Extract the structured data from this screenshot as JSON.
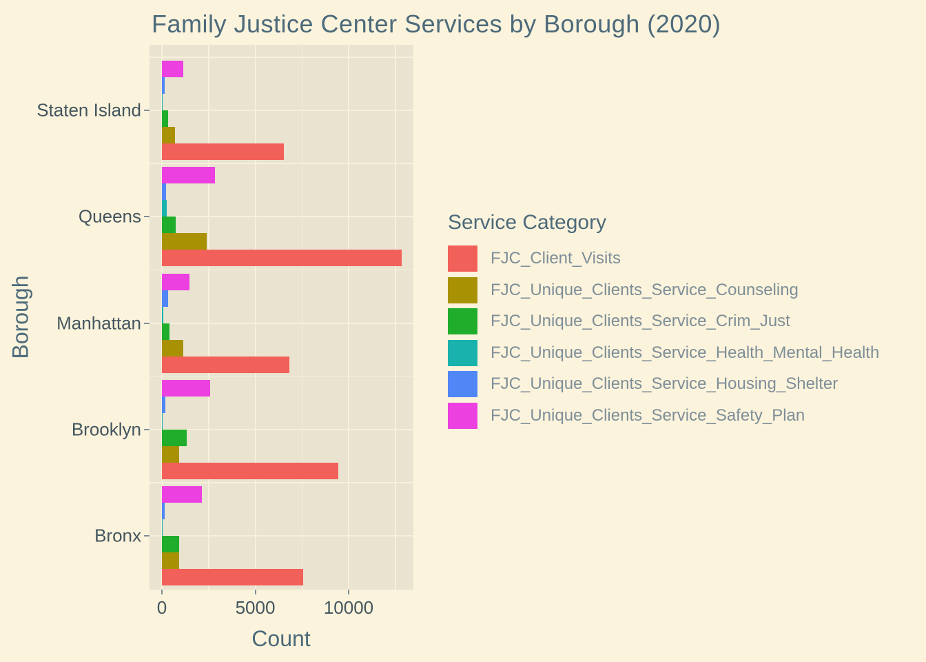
{
  "title": "Family Justice Center Services by Borough (2020)",
  "x_axis": {
    "label": "Count",
    "tick_labels": [
      "0",
      "5000",
      "10000"
    ]
  },
  "y_axis": {
    "label": "Borough",
    "tick_labels": [
      "Staten Island",
      "Queens",
      "Manhattan",
      "Brooklyn",
      "Bronx"
    ]
  },
  "legend": {
    "title": "Service Category"
  },
  "colors": {
    "figure_background": "#FBF3DC",
    "panel_background": "#E9E3D0",
    "gridline": "#F7F0DB",
    "title_text": "#4C6A7A",
    "axis_text": "#44565F",
    "legend_label_text": "#7E8E98",
    "tick_mark": "#7E8E96"
  },
  "chart_data": {
    "type": "bar",
    "orientation": "horizontal",
    "title": "Family Justice Center Services by Borough (2020)",
    "xlabel": "Count",
    "ylabel": "Borough",
    "xlim": [
      0,
      13470
    ],
    "x_ticks": [
      0,
      5000,
      10000
    ],
    "x_minor_gridlines": [
      2500,
      7500,
      12500
    ],
    "grid": "on",
    "legend_position": "right",
    "legend_title": "Service Category",
    "categories_bottom_to_top": [
      "Bronx",
      "Brooklyn",
      "Manhattan",
      "Queens",
      "Staten Island"
    ],
    "series": [
      {
        "name": "FJC_Client_Visits",
        "color": "#F2605A",
        "values": [
          7560,
          9450,
          6830,
          12850,
          6530
        ]
      },
      {
        "name": "FJC_Unique_Clients_Service_Counseling",
        "color": "#A99104",
        "values": [
          920,
          920,
          1140,
          2400,
          700
        ]
      },
      {
        "name": "FJC_Unique_Clients_Service_Crim_Just",
        "color": "#1FAD2B",
        "values": [
          920,
          1330,
          400,
          740,
          320
        ]
      },
      {
        "name": "FJC_Unique_Clients_Service_Health_Mental_Health",
        "color": "#19B2AC",
        "values": [
          40,
          50,
          90,
          240,
          40
        ]
      },
      {
        "name": "FJC_Unique_Clients_Service_Housing_Shelter",
        "color": "#5086F5",
        "values": [
          150,
          170,
          330,
          210,
          150
        ]
      },
      {
        "name": "FJC_Unique_Clients_Service_Safety_Plan",
        "color": "#EC40E0",
        "values": [
          2150,
          2570,
          1490,
          2840,
          1140
        ]
      }
    ]
  }
}
